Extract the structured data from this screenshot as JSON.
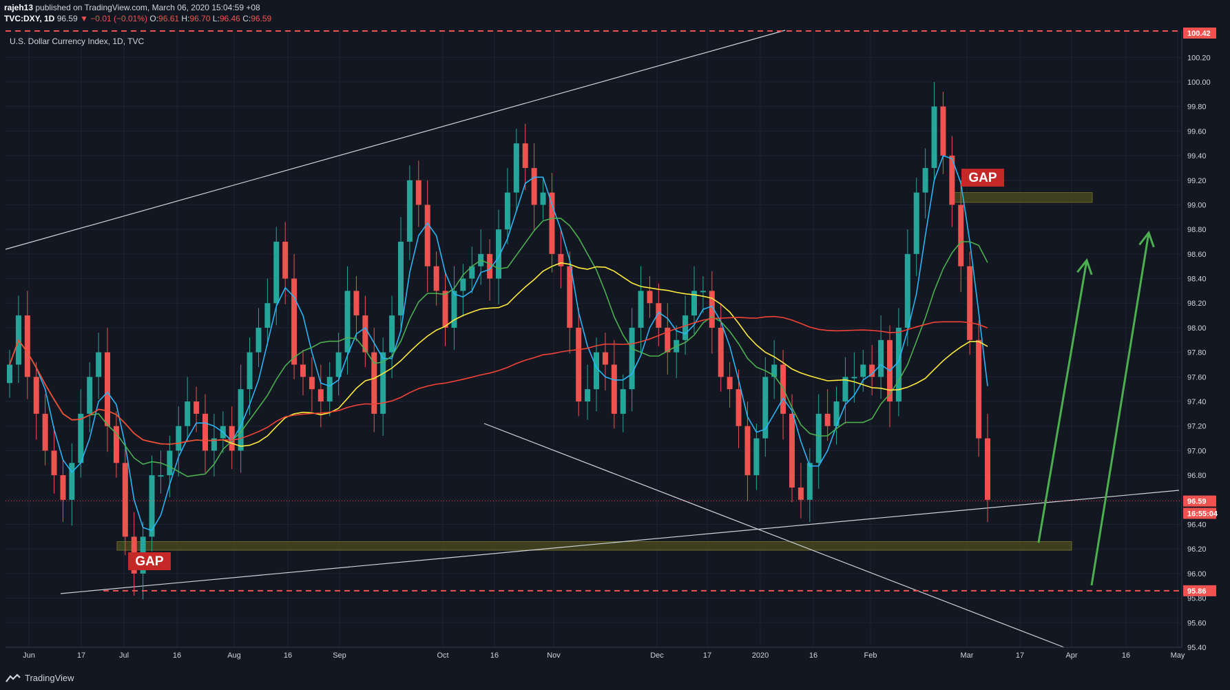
{
  "header": {
    "author": "rajeh13",
    "published": "published on TradingView.com, March 06, 2020 15:04:59 +08",
    "symbol": "TVC:DXY, 1D",
    "last": "96.59",
    "change": "−0.01 (−0.01%)",
    "open_label": "O:",
    "open": "96.61",
    "high_label": "H:",
    "high": "96.70",
    "low_label": "L:",
    "low": "96.46",
    "close_label": "C:",
    "close": "96.59"
  },
  "footer": {
    "brand": "TradingView"
  },
  "colors": {
    "background": "#131722",
    "up": "#26a69a",
    "down": "#ef5350",
    "ma_fast": "#29b6f6",
    "ma_mid": "#4caf50",
    "ma_slow": "#ffeb3b",
    "ma_long": "#f44336",
    "arrows": "#4caf50",
    "gap_label_bg": "#c62828",
    "gap_zone": "#4a4a1e"
  },
  "chart_data": {
    "type": "candlestick",
    "title": "U.S. Dollar Currency Index, 1D, TVC",
    "ylim": [
      95.4,
      100.42
    ],
    "y_ticks": [
      "100.20",
      "100.00",
      "99.80",
      "99.60",
      "99.40",
      "99.20",
      "99.00",
      "98.80",
      "98.60",
      "98.40",
      "98.20",
      "98.00",
      "97.80",
      "97.60",
      "97.40",
      "97.20",
      "97.00",
      "96.80",
      "96.60",
      "96.40",
      "96.20",
      "96.00",
      "95.80",
      "95.60",
      "95.40"
    ],
    "x_ticks": [
      "Jun",
      "17",
      "Jul",
      "16",
      "Aug",
      "16",
      "Sep",
      "Oct",
      "16",
      "Nov",
      "Dec",
      "17",
      "2020",
      "16",
      "Feb",
      "Mar",
      "17",
      "Apr",
      "16",
      "May"
    ],
    "last_price": "96.59",
    "countdown": "16:55:04",
    "level_top": "100.42",
    "level_bottom": "95.86",
    "annotations": [
      "GAP",
      "GAP"
    ],
    "series_shape": [
      97.7,
      98.1,
      97.6,
      97.3,
      97.0,
      96.8,
      96.6,
      96.9,
      97.3,
      97.6,
      97.8,
      97.2,
      96.9,
      96.3,
      96.0,
      96.3,
      96.8,
      96.8,
      97.0,
      97.2,
      97.4,
      97.3,
      97.0,
      97.1,
      97.2,
      97.0,
      97.5,
      97.8,
      98.0,
      98.2,
      98.7,
      98.4,
      97.7,
      97.6,
      97.5,
      97.4,
      97.6,
      97.8,
      98.3,
      98.1,
      97.8,
      97.3,
      97.8,
      98.1,
      98.7,
      99.2,
      99.0,
      98.5,
      98.3,
      98.0,
      98.3,
      98.4,
      98.5,
      98.6,
      98.4,
      98.8,
      99.1,
      99.5,
      99.3,
      99.0,
      99.1,
      98.6,
      98.5,
      98.0,
      97.4,
      97.5,
      97.8,
      97.7,
      97.3,
      97.5,
      98.0,
      98.3,
      98.2,
      98.0,
      97.8,
      97.9,
      98.1,
      98.3,
      98.3,
      98.0,
      97.6,
      97.5,
      97.2,
      96.8,
      97.1,
      97.6,
      97.7,
      97.3,
      96.7,
      96.6,
      96.9,
      97.3,
      97.2,
      97.4,
      97.6,
      97.6,
      97.7,
      97.6,
      97.9,
      97.4,
      98.0,
      98.6,
      99.1,
      99.3,
      99.8,
      99.4,
      99.0,
      98.5,
      97.9,
      97.1,
      96.6
    ]
  }
}
